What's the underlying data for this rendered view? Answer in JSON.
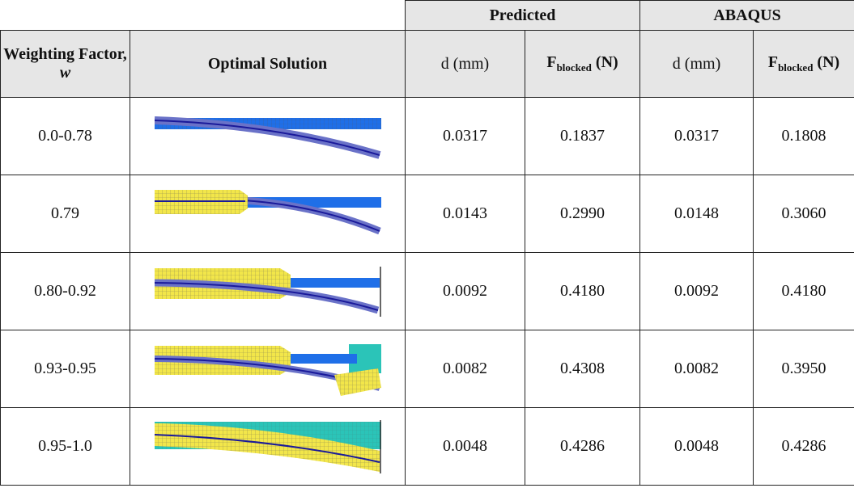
{
  "table": {
    "group_headers": [
      "Predicted",
      "ABAQUS"
    ],
    "columns": [
      {
        "text": "Weighting Factor,",
        "symbol": "w"
      },
      {
        "text": "Optimal Solution"
      },
      {
        "text": "d (mm)"
      },
      {
        "text": "F",
        "sub": "blocked",
        "unit": " (N)"
      },
      {
        "text": "d (mm)"
      },
      {
        "text": "F",
        "sub": "blocked",
        "unit": " (N)"
      }
    ],
    "rows": [
      [
        "0.0-0.78",
        "0.0317",
        "0.1837",
        "0.0317",
        "0.1808"
      ],
      [
        "0.79",
        "0.0143",
        "0.2990",
        "0.0148",
        "0.3060"
      ],
      [
        "0.80-0.92",
        "0.0092",
        "0.4180",
        "0.0092",
        "0.4180"
      ],
      [
        "0.93-0.95",
        "0.0082",
        "0.4308",
        "0.0082",
        "0.3950"
      ],
      [
        "0.95-1.0",
        "0.0048",
        "0.4286",
        "0.0048",
        "0.4286"
      ]
    ]
  }
}
